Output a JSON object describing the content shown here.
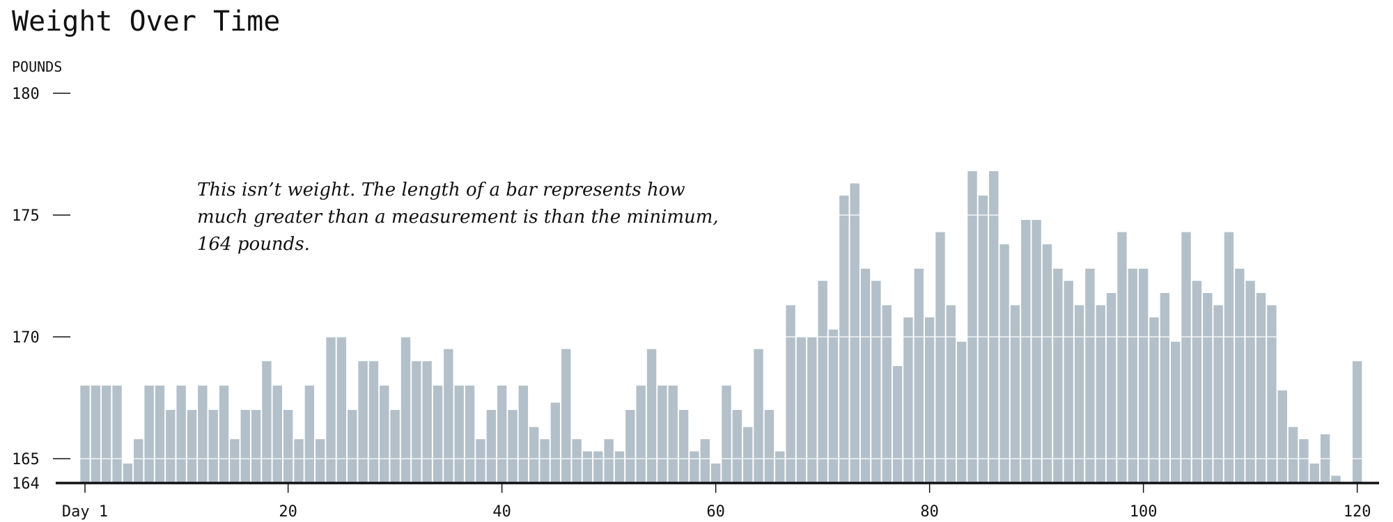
{
  "chart_data": {
    "type": "bar",
    "title": "Weight Over Time",
    "ylabel": "POUNDS",
    "ylim": [
      164,
      180
    ],
    "yticks": [
      {
        "value": 180,
        "label": "180"
      },
      {
        "value": 175,
        "label": "175"
      },
      {
        "value": 170,
        "label": "170"
      },
      {
        "value": 165,
        "label": "165"
      },
      {
        "value": 164,
        "label": "164"
      }
    ],
    "xticks": [
      {
        "value": 1,
        "label": "Day 1"
      },
      {
        "value": 20,
        "label": "20"
      },
      {
        "value": 40,
        "label": "40"
      },
      {
        "value": 60,
        "label": "60"
      },
      {
        "value": 80,
        "label": "80"
      },
      {
        "value": 100,
        "label": "100"
      },
      {
        "value": 120,
        "label": "120"
      }
    ],
    "xlim": [
      1,
      120
    ],
    "grid": true,
    "bar_color": "#b3c0c9",
    "annotation": "This isn’t weight. The length of a bar represents how much greater than a measurement is than the minimum, 164 pounds.",
    "x": [
      1,
      2,
      3,
      4,
      5,
      6,
      7,
      8,
      9,
      10,
      11,
      12,
      13,
      14,
      15,
      16,
      17,
      18,
      19,
      20,
      21,
      22,
      23,
      24,
      25,
      26,
      27,
      28,
      29,
      30,
      31,
      32,
      33,
      34,
      35,
      36,
      37,
      38,
      39,
      40,
      41,
      42,
      43,
      44,
      45,
      46,
      47,
      48,
      49,
      50,
      51,
      52,
      53,
      54,
      55,
      56,
      57,
      58,
      59,
      60,
      61,
      62,
      63,
      64,
      65,
      66,
      67,
      68,
      69,
      70,
      71,
      72,
      73,
      74,
      75,
      76,
      77,
      78,
      79,
      80,
      81,
      82,
      83,
      84,
      85,
      86,
      87,
      88,
      89,
      90,
      91,
      92,
      93,
      94,
      95,
      96,
      97,
      98,
      99,
      100,
      101,
      102,
      103,
      104,
      105,
      106,
      107,
      108,
      109,
      110,
      111,
      112,
      113,
      114,
      115,
      116,
      117,
      118,
      119,
      120
    ],
    "values": [
      168,
      168,
      168,
      168,
      164.8,
      165.8,
      168,
      168,
      167,
      168,
      167,
      168,
      167,
      168,
      165.8,
      167,
      167,
      169,
      168,
      167,
      165.8,
      168,
      165.8,
      170,
      170,
      167,
      169,
      169,
      168,
      167,
      170,
      169,
      169,
      168,
      169.5,
      168,
      168,
      165.8,
      167,
      168,
      167,
      168,
      166.3,
      165.8,
      167.3,
      169.5,
      165.8,
      165.3,
      165.3,
      165.8,
      165.3,
      167,
      168,
      169.5,
      168,
      168,
      167,
      165.3,
      165.8,
      164.8,
      168,
      167,
      166.3,
      169.5,
      167,
      165.3,
      171.3,
      170,
      170,
      172.3,
      170.3,
      175.8,
      176.3,
      172.8,
      172.3,
      171.3,
      168.8,
      170.8,
      172.8,
      170.8,
      174.3,
      171.3,
      169.8,
      176.8,
      175.8,
      176.8,
      173.8,
      171.3,
      174.8,
      174.8,
      173.8,
      172.8,
      172.3,
      171.3,
      172.8,
      171.3,
      171.8,
      174.3,
      172.8,
      172.8,
      170.8,
      171.8,
      169.8,
      174.3,
      172.3,
      171.8,
      171.3,
      174.3,
      172.8,
      172.3,
      171.8,
      171.3,
      167.8,
      166.3,
      165.8,
      164.8,
      166.0,
      164.3,
      164.0,
      169.0
    ]
  }
}
